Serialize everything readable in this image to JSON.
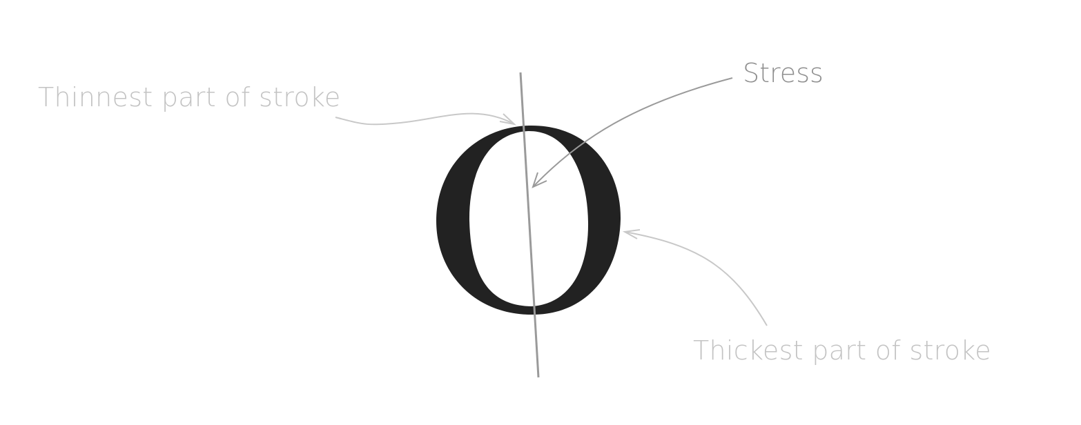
{
  "labels": {
    "thinnest": "Thinnest part of stroke",
    "stress": "Stress",
    "thickest": "Thickest part of stroke"
  },
  "colors": {
    "glyph": "#222222",
    "stress_axis": "#9a9a9a",
    "stress_label": "#8f8f8f",
    "callout": "#c3c3c3"
  }
}
